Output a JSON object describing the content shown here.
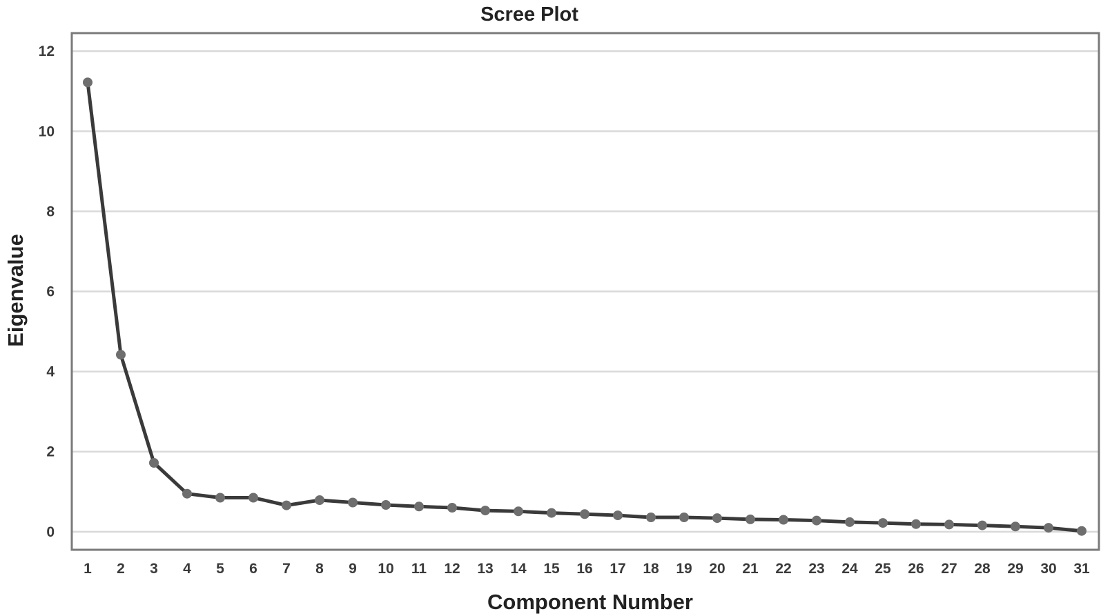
{
  "chart_data": {
    "type": "line",
    "title": "Scree Plot",
    "xlabel": "Component Number",
    "ylabel": "Eigenvalue",
    "x": [
      1,
      2,
      3,
      4,
      5,
      6,
      7,
      8,
      9,
      10,
      11,
      12,
      13,
      14,
      15,
      16,
      17,
      18,
      19,
      20,
      21,
      22,
      23,
      24,
      25,
      26,
      27,
      28,
      29,
      30,
      31
    ],
    "categories": [
      "1",
      "2",
      "3",
      "4",
      "5",
      "6",
      "7",
      "8",
      "9",
      "10",
      "11",
      "12",
      "13",
      "14",
      "15",
      "16",
      "17",
      "18",
      "19",
      "20",
      "21",
      "22",
      "23",
      "24",
      "25",
      "26",
      "27",
      "28",
      "29",
      "30",
      "31"
    ],
    "series": [
      {
        "values": [
          11.22,
          4.42,
          1.72,
          0.95,
          0.85,
          0.85,
          0.66,
          0.79,
          0.73,
          0.67,
          0.63,
          0.6,
          0.53,
          0.51,
          0.47,
          0.44,
          0.41,
          0.36,
          0.36,
          0.34,
          0.31,
          0.3,
          0.28,
          0.24,
          0.22,
          0.19,
          0.18,
          0.16,
          0.13,
          0.1,
          0.02
        ]
      }
    ],
    "ylim": [
      -0.45,
      12.45
    ],
    "yticks": [
      0,
      2,
      4,
      6,
      8,
      10,
      12
    ],
    "ytick_labels": [
      "0",
      "2",
      "4",
      "6",
      "8",
      "10",
      "12"
    ],
    "grid": true,
    "colors": {
      "line": "#3a3a3a",
      "marker": "#6e6e6e",
      "grid": "#d9d9d9",
      "frame": "#7a7a7a"
    }
  }
}
